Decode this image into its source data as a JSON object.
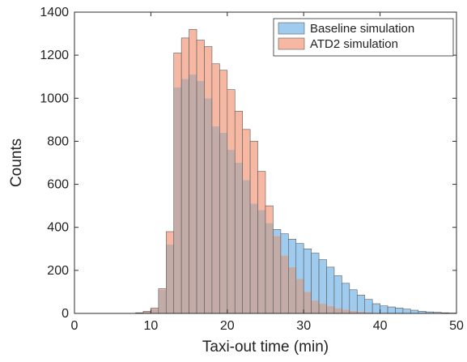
{
  "chart_data": {
    "type": "bar",
    "subtype": "overlapping-histogram",
    "title": "",
    "xlabel": "Taxi-out time (min)",
    "ylabel": "Counts",
    "xlim": [
      0,
      50
    ],
    "ylim": [
      0,
      1400
    ],
    "xticks": [
      0,
      10,
      20,
      30,
      40,
      50
    ],
    "yticks": [
      0,
      200,
      400,
      600,
      800,
      1000,
      1200,
      1400
    ],
    "grid": false,
    "legend_position": "top-right",
    "bin_width": 1,
    "bin_edges_start": 0,
    "series": [
      {
        "name": "Baseline simulation",
        "color": "#9fcbee",
        "values": [
          0,
          0,
          0,
          0,
          0,
          0,
          0,
          0,
          2,
          8,
          20,
          110,
          320,
          1050,
          1090,
          1110,
          1080,
          1000,
          870,
          840,
          760,
          700,
          620,
          510,
          480,
          420,
          390,
          370,
          345,
          325,
          300,
          280,
          250,
          215,
          175,
          140,
          110,
          85,
          65,
          45,
          35,
          30,
          25,
          20,
          15,
          10,
          7,
          5,
          3,
          2
        ]
      },
      {
        "name": "ATD2 simulation",
        "color": "#f6b8a3",
        "values": [
          0,
          0,
          0,
          0,
          0,
          0,
          0,
          0,
          3,
          10,
          25,
          115,
          380,
          1210,
          1280,
          1320,
          1270,
          1240,
          1160,
          1130,
          1040,
          940,
          855,
          800,
          660,
          500,
          360,
          270,
          215,
          160,
          100,
          60,
          45,
          35,
          25,
          18,
          12,
          8,
          5,
          3,
          2,
          1,
          0,
          0,
          0,
          0,
          0,
          0,
          0,
          0
        ]
      }
    ]
  },
  "colors": {
    "baseline": "#9fcbee",
    "atd2": "#f6b8a3",
    "overlap": "#c3aba7",
    "edge": "#5a5a5a",
    "axis": "#2b2b2b"
  }
}
